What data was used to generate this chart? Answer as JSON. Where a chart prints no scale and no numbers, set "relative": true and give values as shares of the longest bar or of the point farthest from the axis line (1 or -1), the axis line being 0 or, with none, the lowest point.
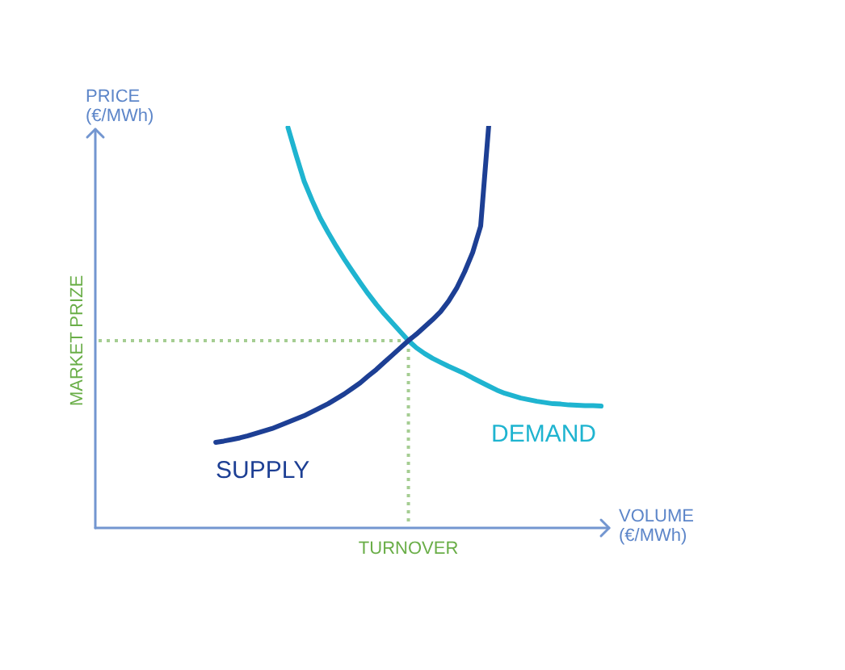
{
  "chart_data": {
    "type": "line",
    "relative": true,
    "marker": "none",
    "grid": false,
    "xlabel": "VOLUME\n(€/MWh)",
    "ylabel": "PRICE\n(€/MWh)",
    "categories": [
      null,
      null,
      null,
      null,
      null,
      null,
      null,
      null,
      null,
      null,
      null,
      null,
      null,
      null,
      null,
      null,
      null,
      null,
      null,
      null,
      null,
      null,
      null,
      null,
      null,
      null,
      null,
      null,
      null,
      null,
      null,
      null,
      null,
      null,
      null,
      null,
      null,
      null,
      null,
      null,
      null,
      null,
      null,
      null,
      null,
      null,
      null,
      null,
      null,
      null,
      null,
      null,
      null,
      null,
      null,
      null,
      null,
      null,
      null,
      null,
      null,
      null,
      null,
      null,
      null
    ],
    "series": [
      {
        "name": "SUPPLY",
        "color": "#1d3f94",
        "values": [
          null,
          null,
          null,
          null,
          null,
          null,
          null,
          null,
          null,
          null,
          null,
          null,
          null,
          null,
          null,
          0.213,
          0.216,
          0.22,
          0.224,
          0.229,
          0.235,
          0.241,
          0.247,
          0.255,
          0.263,
          0.271,
          0.279,
          0.289,
          0.299,
          0.309,
          0.321,
          0.333,
          0.347,
          0.361,
          0.378,
          0.394,
          0.412,
          0.43,
          0.448,
          0.466,
          0.482,
          0.5,
          0.518,
          0.538,
          0.564,
          0.596,
          0.637,
          0.685,
          0.751,
          1.0,
          null,
          null,
          null,
          null,
          null,
          null,
          null,
          null,
          null,
          null,
          null,
          null,
          null,
          null,
          null
        ]
      },
      {
        "name": "DEMAND",
        "color": "#1fb4d0",
        "values": [
          null,
          null,
          null,
          null,
          null,
          null,
          null,
          null,
          null,
          null,
          null,
          null,
          null,
          null,
          null,
          null,
          null,
          null,
          null,
          null,
          null,
          null,
          null,
          null,
          0.996,
          0.928,
          0.863,
          0.815,
          0.771,
          0.735,
          0.701,
          0.669,
          0.639,
          0.61,
          0.582,
          0.556,
          0.532,
          0.51,
          0.488,
          0.466,
          0.448,
          0.434,
          0.422,
          0.412,
          0.402,
          0.393,
          0.384,
          0.373,
          0.363,
          0.353,
          0.343,
          0.335,
          0.329,
          0.323,
          0.319,
          0.315,
          0.312,
          0.309,
          0.308,
          0.306,
          0.305,
          0.304,
          0.304,
          0.303,
          null
        ]
      }
    ],
    "ref_lines": [
      {
        "axis": "y",
        "value": 0.466,
        "label": "MARKET PRIZE",
        "color": "#a5cd92",
        "line_style": "dotted"
      }
    ],
    "annotations": [
      "TURNOVER"
    ]
  }
}
